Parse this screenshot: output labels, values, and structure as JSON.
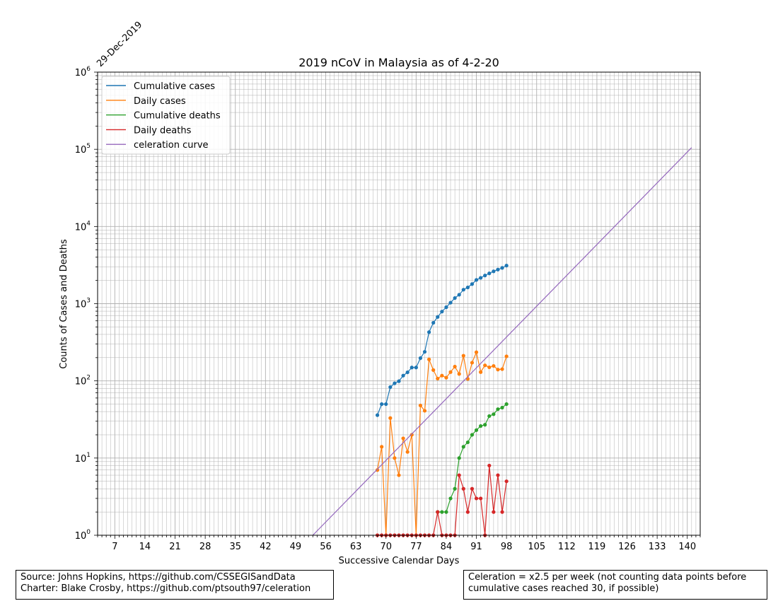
{
  "chart_data": {
    "type": "line",
    "title": "2019 nCoV in Malaysia as of 4-2-20",
    "xlabel": "Successive Calendar Days",
    "ylabel": "Counts of Cases and Deaths",
    "start_date_label": "29-Dec-2019",
    "xlim": [
      3,
      143
    ],
    "ylim": [
      1,
      1000000
    ],
    "yscale": "log",
    "grid": true,
    "legend_position": "top-left",
    "x_ticks": [
      7,
      14,
      21,
      28,
      35,
      42,
      49,
      56,
      63,
      70,
      77,
      84,
      91,
      98,
      105,
      112,
      119,
      126,
      133,
      140
    ],
    "y_ticks": [
      {
        "value": 1,
        "base": "10",
        "exp": "0"
      },
      {
        "value": 10,
        "base": "10",
        "exp": "1"
      },
      {
        "value": 100,
        "base": "10",
        "exp": "2"
      },
      {
        "value": 1000,
        "base": "10",
        "exp": "3"
      },
      {
        "value": 10000,
        "base": "10",
        "exp": "4"
      },
      {
        "value": 100000,
        "base": "10",
        "exp": "5"
      },
      {
        "value": 1000000,
        "base": "10",
        "exp": "6"
      }
    ],
    "series": [
      {
        "name": "Cumulative cases",
        "color": "#1f77b4",
        "markers": true,
        "x": [
          68,
          69,
          70,
          71,
          72,
          73,
          74,
          75,
          76,
          77,
          78,
          79,
          80,
          81,
          82,
          83,
          84,
          85,
          86,
          87,
          88,
          89,
          90,
          91,
          92,
          93,
          94,
          95,
          96,
          97,
          98
        ],
        "y": [
          36,
          50,
          50,
          83,
          93,
          99,
          117,
          129,
          149,
          149,
          197,
          238,
          428,
          566,
          673,
          790,
          900,
          1030,
          1183,
          1306,
          1518,
          1624,
          1796,
          2031,
          2161,
          2320,
          2470,
          2626,
          2766,
          2908,
          3116
        ]
      },
      {
        "name": "Daily cases",
        "color": "#ff7f0e",
        "markers": true,
        "x": [
          68,
          69,
          70,
          71,
          72,
          73,
          74,
          75,
          76,
          77,
          78,
          79,
          80,
          81,
          82,
          83,
          84,
          85,
          86,
          87,
          88,
          89,
          90,
          91,
          92,
          93,
          94,
          95,
          96,
          97,
          98
        ],
        "y": [
          7,
          14,
          1,
          33,
          10,
          6,
          18,
          12,
          20,
          1,
          48,
          41,
          190,
          138,
          107,
          117,
          110,
          130,
          153,
          123,
          212,
          106,
          172,
          235,
          130,
          159,
          150,
          156,
          140,
          142,
          208
        ]
      },
      {
        "name": "Cumulative deaths",
        "color": "#2ca02c",
        "markers": true,
        "x": [
          82,
          83,
          84,
          85,
          86,
          87,
          88,
          89,
          90,
          91,
          92,
          93,
          94,
          95,
          96,
          97,
          98
        ],
        "y": [
          2,
          2,
          2,
          3,
          4,
          10,
          14,
          16,
          20,
          23,
          26,
          27,
          35,
          37,
          43,
          45,
          50
        ]
      },
      {
        "name": "Daily deaths",
        "color": "#d62728",
        "markers": true,
        "x": [
          68,
          69,
          70,
          71,
          72,
          73,
          74,
          75,
          76,
          77,
          78,
          79,
          80,
          81,
          82,
          83,
          84,
          85,
          86,
          87,
          88,
          89,
          90,
          91,
          92,
          93,
          94,
          95,
          96,
          97,
          98
        ],
        "y": [
          1,
          1,
          1,
          1,
          1,
          1,
          1,
          1,
          1,
          1,
          1,
          1,
          1,
          1,
          2,
          1,
          1,
          1,
          1,
          6,
          4,
          2,
          4,
          3,
          3,
          1,
          8,
          2,
          6,
          2,
          5
        ]
      },
      {
        "name": "celeration curve",
        "color": "#9467bd",
        "markers": false,
        "x": [
          53,
          141
        ],
        "y": [
          1,
          105000
        ]
      }
    ]
  },
  "notes": {
    "source": "Source: Johns Hopkins, https://github.com/CSSEGISandData",
    "charter": "Charter: Blake Crosby, https://github.com/ptsouth97/celeration",
    "celeration_line1": "Celeration = x2.5 per week (not counting data points before",
    "celeration_line2": "cumulative cases reached 30, if possible)"
  }
}
